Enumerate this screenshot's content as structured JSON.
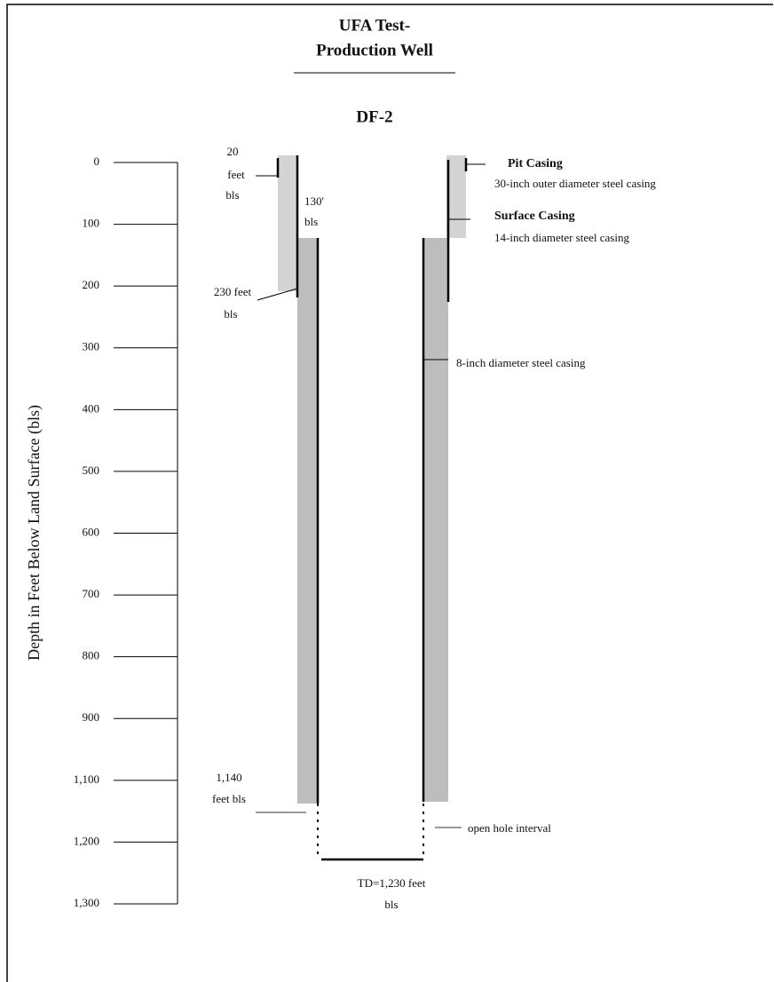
{
  "title": {
    "lines": [
      "UFA Test-",
      "Production Well"
    ],
    "well_id": "DF-2"
  },
  "axis": {
    "label": "Depth in Feet Below Land Surface (bls)",
    "tick_labels": [
      "0",
      "100",
      "200",
      "300",
      "400",
      "500",
      "600",
      "700",
      "800",
      "900",
      "1,100",
      "1,200",
      "1,300"
    ]
  },
  "annotations": {
    "pit_depth": [
      "20",
      "feet",
      "bls"
    ],
    "surface_depth": [
      "130'",
      "bls"
    ],
    "surface_casing_depth": [
      "230 feet",
      "bls"
    ],
    "casing_bottom": [
      "1,140",
      "feet bls"
    ],
    "total_depth": [
      "TD=1,230 feet",
      "bls"
    ],
    "pit_casing": {
      "name": "Pit Casing",
      "description": "30-inch outer diameter steel casing"
    },
    "surface_casing": {
      "name": "Surface Casing",
      "description": "14-inch diameter steel casing"
    },
    "production_casing": "8-inch diameter steel casing",
    "open_hole": "open hole interval"
  }
}
